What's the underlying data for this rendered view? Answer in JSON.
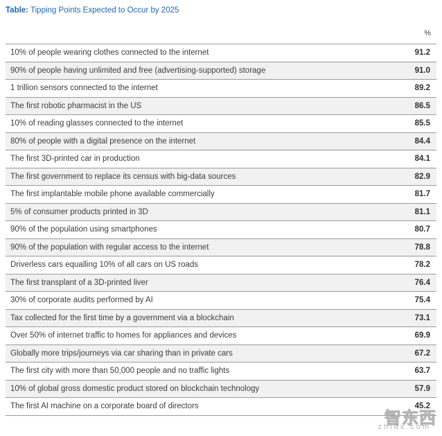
{
  "header": {
    "title_label": "Table:",
    "title_text": "Tipping Points Expected to Occur by 2025",
    "unit": "%"
  },
  "rows": [
    {
      "label": "10% of people wearing clothes connected to the internet",
      "value": "91.2"
    },
    {
      "label": "90% of people having unlimited and free (advertising-supported) storage",
      "value": "91.0"
    },
    {
      "label": "1 trillion sensors connected to the internet",
      "value": "89.2"
    },
    {
      "label": "The first robotic pharmacist in the US",
      "value": "86.5"
    },
    {
      "label": "10% of reading glasses connected to the internet",
      "value": "85.5"
    },
    {
      "label": "80% of people with a digital presence on the internet",
      "value": "84.4"
    },
    {
      "label": "The first 3D-printed car in production",
      "value": "84.1"
    },
    {
      "label": "The first government to replace its census with big-data sources",
      "value": "82.9"
    },
    {
      "label": "The first implantable mobile phone available commercially",
      "value": "81.7"
    },
    {
      "label": "5% of consumer products printed in 3D",
      "value": "81.1"
    },
    {
      "label": "90% of the population using smartphones",
      "value": "80.7"
    },
    {
      "label": "90% of the population with regular access to the internet",
      "value": "78.8"
    },
    {
      "label": "Driverless cars equalling 10% of all cars on US roads",
      "value": "78.2"
    },
    {
      "label": "The first transplant of a 3D-printed liver",
      "value": "76.4"
    },
    {
      "label": "30% of corporate audits performed by AI",
      "value": "75.4"
    },
    {
      "label": "Tax collected for the first time by a government via a blockchain",
      "value": "73.1"
    },
    {
      "label": "Over 50% of internet traffic to homes for appliances and devices",
      "value": "69.9"
    },
    {
      "label": "Globally more trips/journeys via car sharing than in private cars",
      "value": "67.2"
    },
    {
      "label": "The first city with more than 50,000 people and no traffic lights",
      "value": "63.7"
    },
    {
      "label": "10% of global gross domestic product stored on blockchain technology",
      "value": "57.9"
    },
    {
      "label": "The first AI machine on a corporate board of directors",
      "value": "45.2"
    }
  ],
  "watermark": {
    "main": "智东西",
    "sub": "zhidx.com"
  }
}
